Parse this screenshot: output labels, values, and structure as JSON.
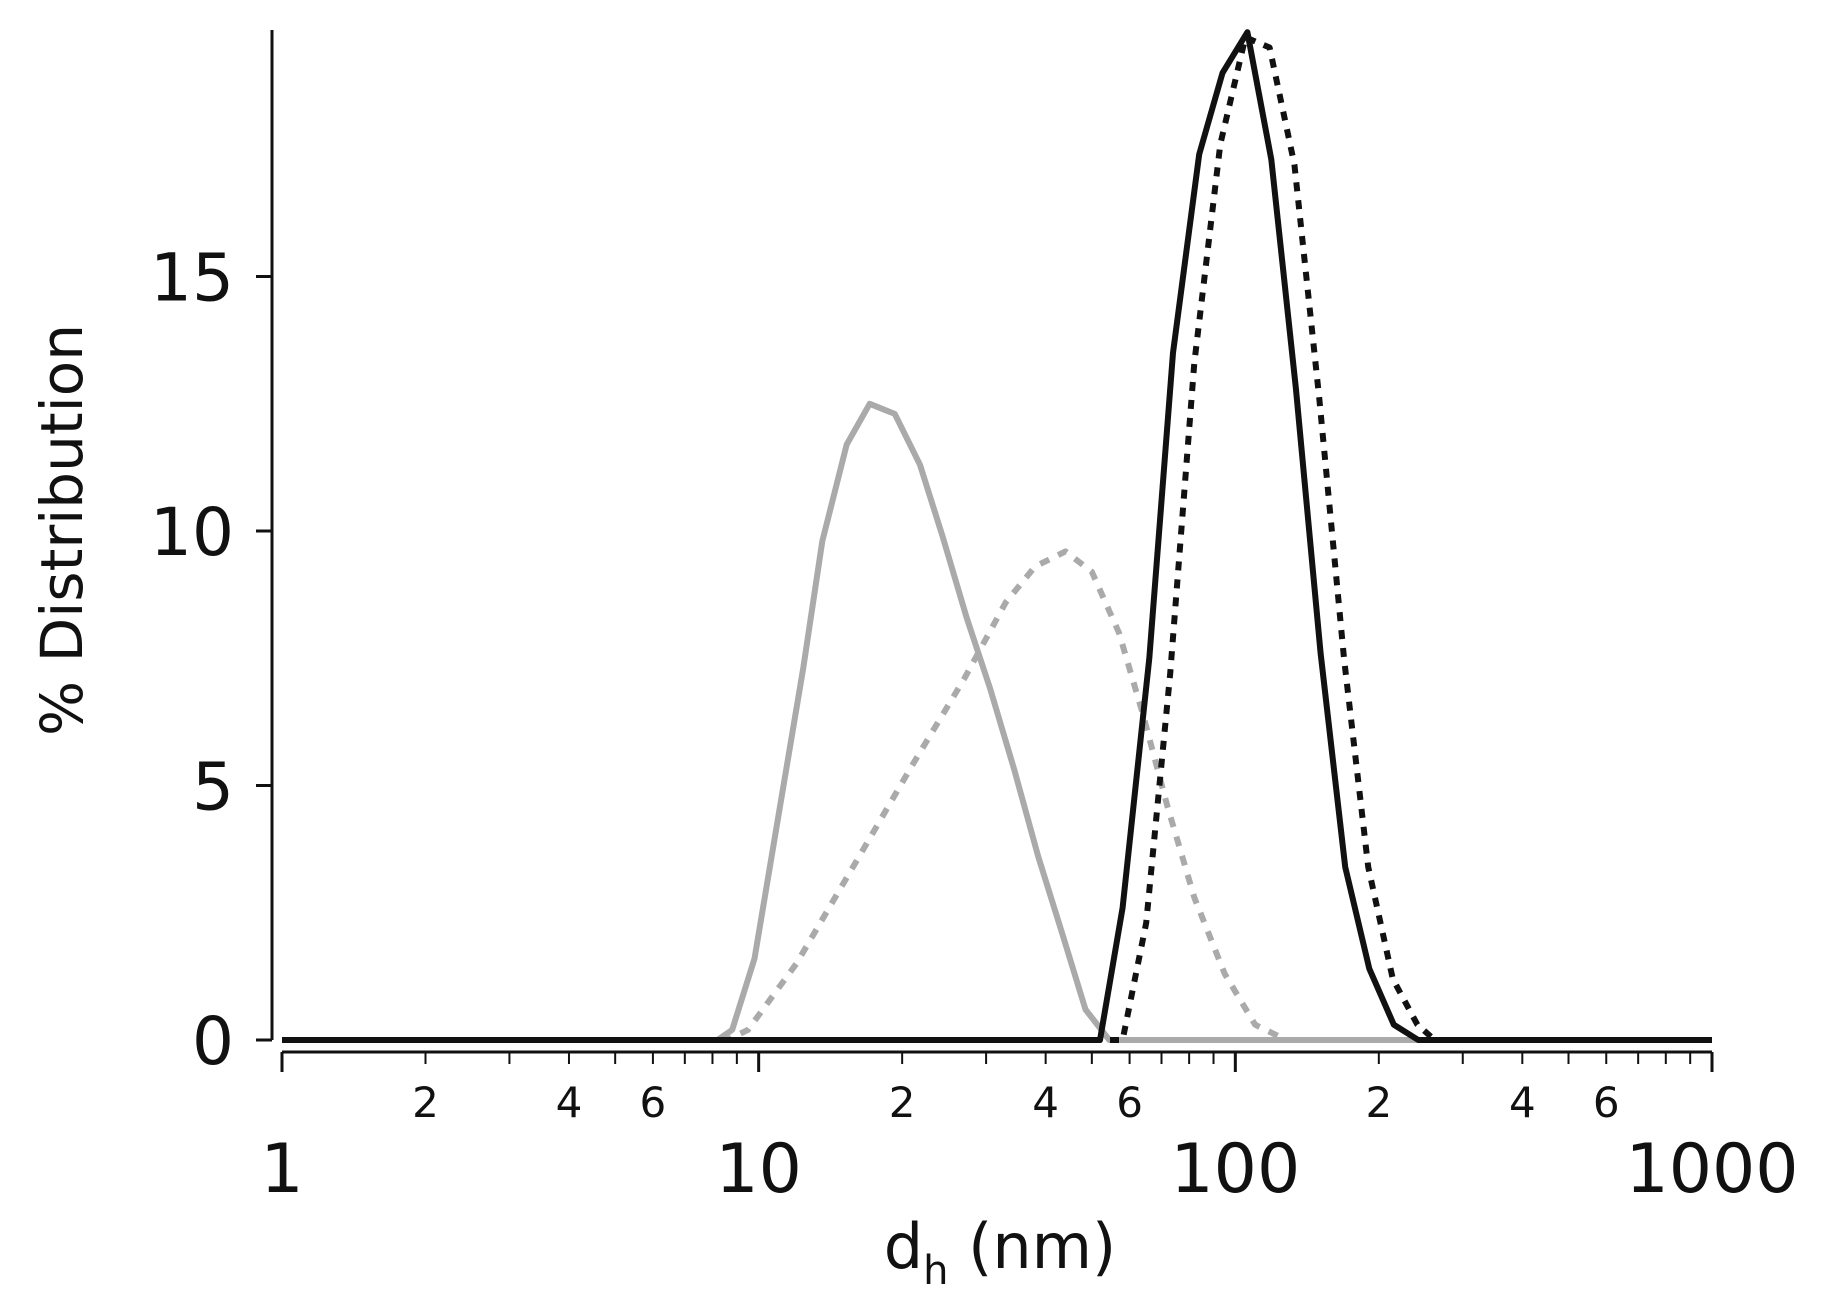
{
  "chart_data": {
    "type": "line",
    "xscale": "log",
    "xlim": [
      1,
      1000
    ],
    "ylim": [
      0,
      20
    ],
    "grid": false,
    "legend": "none",
    "xlabel": {
      "main": "d",
      "sub": "h",
      "rest": " (nm)"
    },
    "ylabel": "% Distribution",
    "y_ticks": [
      {
        "value": 0,
        "label": "0"
      },
      {
        "value": 5,
        "label": "5"
      },
      {
        "value": 10,
        "label": "10"
      },
      {
        "value": 15,
        "label": "15"
      }
    ],
    "x_major_ticks": [
      {
        "value": 1,
        "label": "1"
      },
      {
        "value": 10,
        "label": "10"
      },
      {
        "value": 100,
        "label": "100"
      },
      {
        "value": 1000,
        "label": "1000"
      }
    ],
    "x_minor_labels": [
      {
        "value": 2,
        "label": "2"
      },
      {
        "value": 4,
        "label": "4"
      },
      {
        "value": 6,
        "label": "6"
      },
      {
        "value": 20,
        "label": "2"
      },
      {
        "value": 40,
        "label": "4"
      },
      {
        "value": 60,
        "label": "6"
      },
      {
        "value": 200,
        "label": "2"
      },
      {
        "value": 400,
        "label": "4"
      },
      {
        "value": 600,
        "label": "6"
      }
    ],
    "series": [
      {
        "color": "#aaaaaa",
        "dash": "solid",
        "x": [
          1,
          8.2,
          8.8,
          9.8,
          11,
          12.4,
          13.6,
          15.3,
          17.1,
          19.3,
          21.8,
          24.3,
          27.3,
          30.6,
          34.4,
          38.6,
          43.3,
          48.5,
          54.4,
          61.1,
          68.5,
          76.9,
          86.3,
          1000
        ],
        "y": [
          0,
          0,
          0.2,
          1.6,
          4.4,
          7.3,
          9.8,
          11.7,
          12.5,
          12.3,
          11.3,
          9.9,
          8.3,
          6.9,
          5.3,
          3.6,
          2.1,
          0.6,
          0,
          0,
          0,
          0,
          0,
          0
        ]
      },
      {
        "color": "#aaaaaa",
        "dash": "dotted",
        "x": [
          1,
          8.6,
          9.5,
          12,
          16,
          21,
          27,
          33,
          38,
          44,
          50,
          57,
          64,
          72,
          82,
          95,
          110,
          128,
          1000
        ],
        "y": [
          0,
          0,
          0.2,
          1.5,
          3.5,
          5.4,
          7.1,
          8.6,
          9.3,
          9.6,
          9.2,
          8.0,
          6.4,
          4.6,
          2.8,
          1.3,
          0.3,
          0,
          0
        ]
      },
      {
        "color": "#111111",
        "dash": "solid",
        "x": [
          1,
          52,
          58,
          66,
          74,
          84,
          94,
          106,
          119,
          134,
          151,
          170,
          191,
          215,
          242,
          1000
        ],
        "y": [
          0,
          0,
          2.6,
          7.5,
          13.5,
          17.4,
          19.0,
          19.8,
          17.3,
          12.8,
          7.6,
          3.4,
          1.4,
          0.3,
          0,
          0
        ]
      },
      {
        "color": "#111111",
        "dash": "dotted",
        "x": [
          1,
          58,
          65,
          73,
          82,
          93,
          105,
          118,
          133,
          150,
          169,
          190,
          214,
          241,
          262,
          1000
        ],
        "y": [
          0,
          0,
          2.3,
          7.2,
          13.3,
          17.6,
          19.7,
          19.5,
          17.2,
          12.6,
          7.5,
          3.4,
          1.2,
          0.3,
          0,
          0
        ]
      }
    ]
  }
}
